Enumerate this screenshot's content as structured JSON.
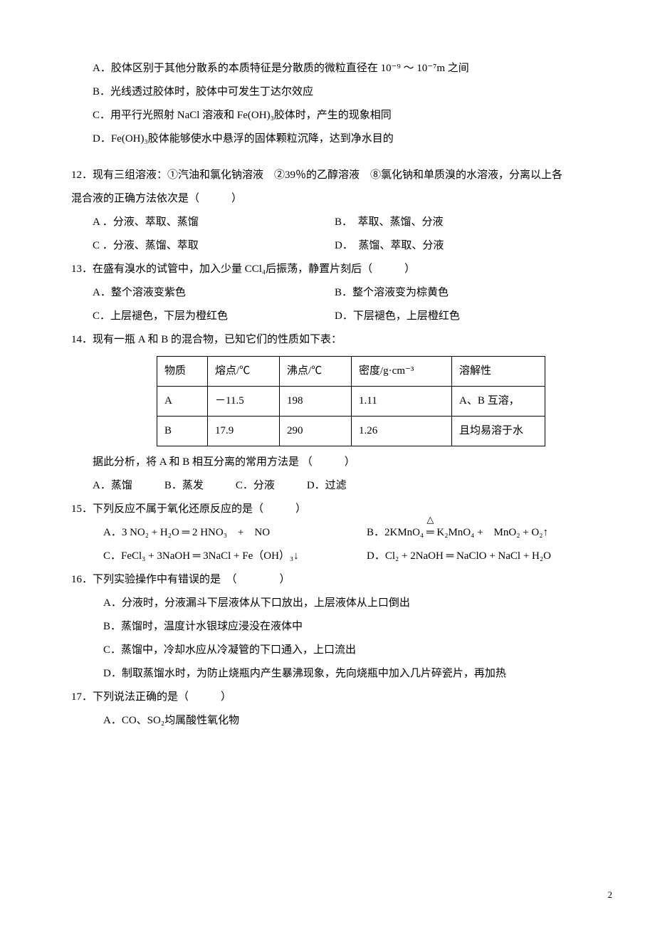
{
  "q11": {
    "optA": "A．胶体区别于其他分散系的本质特征是分散质的微粒直径在 10⁻⁹ ～ 10⁻⁷m 之间",
    "optB": "B．光线透过胶体时，胶体中可发生丁达尔效应",
    "optC": "C．用平行光照射 NaCl 溶液和 Fe(OH)₃胶体时，产生的现象相同",
    "optD": "D．Fe(OH)₃胶体能够使水中悬浮的固体颗粒沉降，达到净水目的"
  },
  "q12": {
    "stem1": "12．现有三组溶液：①汽油和氯化钠溶液　②39％的乙醇溶液　⑧氯化钠和单质溴的水溶液，分离以上各",
    "stem2": "混合液的正确方法依次是（　　　）",
    "optA": "A ．分液、萃取、蒸馏",
    "optB": "B．　萃取、蒸馏、分液",
    "optC": "C ．分液、蒸馏、萃取",
    "optD": "D．　蒸馏、萃取、分液"
  },
  "q13": {
    "stem": "13．在盛有溴水的试管中，加入少量 CCl₄后振荡，静置片刻后（　　　）",
    "optA": "A．整个溶液变紫色",
    "optB": "B．整个溶液变为棕黄色",
    "optC": "C．上层褪色，下层为橙红色",
    "optD": "D．下层褪色，上层橙红色"
  },
  "q14": {
    "stem": "14．现有一瓶 A 和 B 的混合物，已知它们的性质如下表：",
    "table": {
      "headers": [
        "物质",
        "熔点/℃",
        "沸点/℃",
        "密度/g·cm⁻³",
        "溶解性"
      ],
      "rowA": [
        "A",
        "－11.5",
        "198",
        "1.11"
      ],
      "rowB": [
        "B",
        "17.9",
        "290",
        "1.26"
      ],
      "sol1": "A、B 互溶，",
      "sol2": "且均易溶于水",
      "col_widths": [
        "50px",
        "80px",
        "80px",
        "120px",
        "110px"
      ]
    },
    "post": "据此分析，将 A 和 B 相互分离的常用方法是 （　　　）",
    "opts": "A．蒸馏　　　B．蒸发　　　C．分液　　　D．过滤"
  },
  "q15": {
    "stem": "15．下列反应不属于氧化还原反应的是（　　　）",
    "optA": "A．3 NO₂ + H₂O  ═  2 HNO₃　+　NO",
    "optB_pre": "B．2KMnO₄ ",
    "optB_mid": "═",
    "optB_post": " K₂MnO₄ +　MnO₂ + O₂↑",
    "optC": "C．FeCl₃ +  3NaOH ═ 3NaCl  +  Fe（OH）₃↓",
    "optD": "D．Cl₂ + 2NaOH ═ NaClO + NaCl + H₂O"
  },
  "q16": {
    "stem": "16．下列实验操作中有错误的是　（　　　　）",
    "optA": "A．分液时，分液漏斗下层液体从下口放出，上层液体从上口倒出",
    "optB": "B．蒸馏时，温度计水银球应浸没在液体中",
    "optC": "C．蒸馏中，冷却水应从冷凝管的下口通入，上口流出",
    "optD": "D．制取蒸馏水时，为防止烧瓶内产生暴沸现象，先向烧瓶中加入几片碎瓷片，再加热"
  },
  "q17": {
    "stem": "17．下列说法正确的是（　　　）",
    "optA": "A．CO、SO₂均属酸性氧化物"
  },
  "page_number": "2"
}
